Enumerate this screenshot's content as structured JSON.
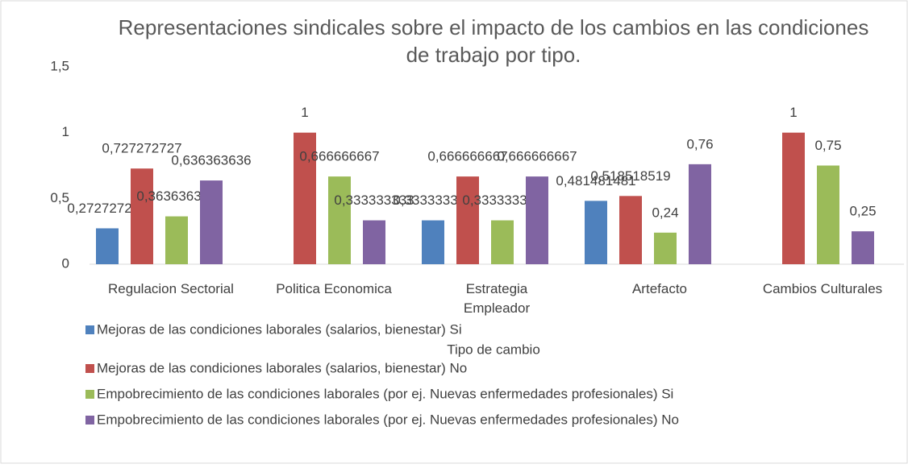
{
  "chart_data": {
    "type": "bar",
    "title": "Representaciones sindicales sobre el impacto de los cambios en las condiciones de trabajo por tipo.",
    "x_label": "Tipo de cambio",
    "categories": [
      "Regulacion Sectorial",
      "Politica Economica",
      "Estrategia Empleador",
      "Artefacto",
      "Cambios Culturales"
    ],
    "series": [
      {
        "name": "Mejoras de las condiciones laborales (salarios, bienestar) Si",
        "color": "#4f81bd",
        "values": [
          0.272727273,
          null,
          0.333333333,
          0.481481481,
          null
        ],
        "value_labels": [
          "0,272727273",
          null,
          "0,333333333",
          "0,481481481",
          null
        ]
      },
      {
        "name": "Mejoras de las condiciones laborales (salarios, bienestar) No",
        "color": "#c0504d",
        "values": [
          0.727272727,
          1,
          0.666666667,
          0.518518519,
          1
        ],
        "value_labels": [
          "0,727272727",
          "1",
          "0,666666667",
          "0,518518519",
          "1"
        ]
      },
      {
        "name": "Empobrecimiento de las condiciones laborales (por ej. Nuevas enfermedades profesionales) Si",
        "color": "#9bbb59",
        "values": [
          0.363636364,
          0.666666667,
          0.333333333,
          0.24,
          0.75
        ],
        "value_labels": [
          "0,363636364",
          "0,666666667",
          "0,333333333",
          "0,24",
          "0,75"
        ]
      },
      {
        "name": "Empobrecimiento de las condiciones laborales (por ej. Nuevas enfermedades profesionales) No",
        "color": "#8064a2",
        "values": [
          0.636363636,
          0.333333333,
          0.666666667,
          0.76,
          0.25
        ],
        "value_labels": [
          "0,636363636",
          "0,333333333",
          "0,666666667",
          "0,76",
          "0,25"
        ]
      }
    ],
    "ylim": [
      0,
      1.5
    ],
    "yticks": [
      0,
      {
        "value": 0.5,
        "label": "0,5"
      },
      1,
      {
        "value": 1.5,
        "label": "1,5"
      }
    ],
    "grid": false
  }
}
